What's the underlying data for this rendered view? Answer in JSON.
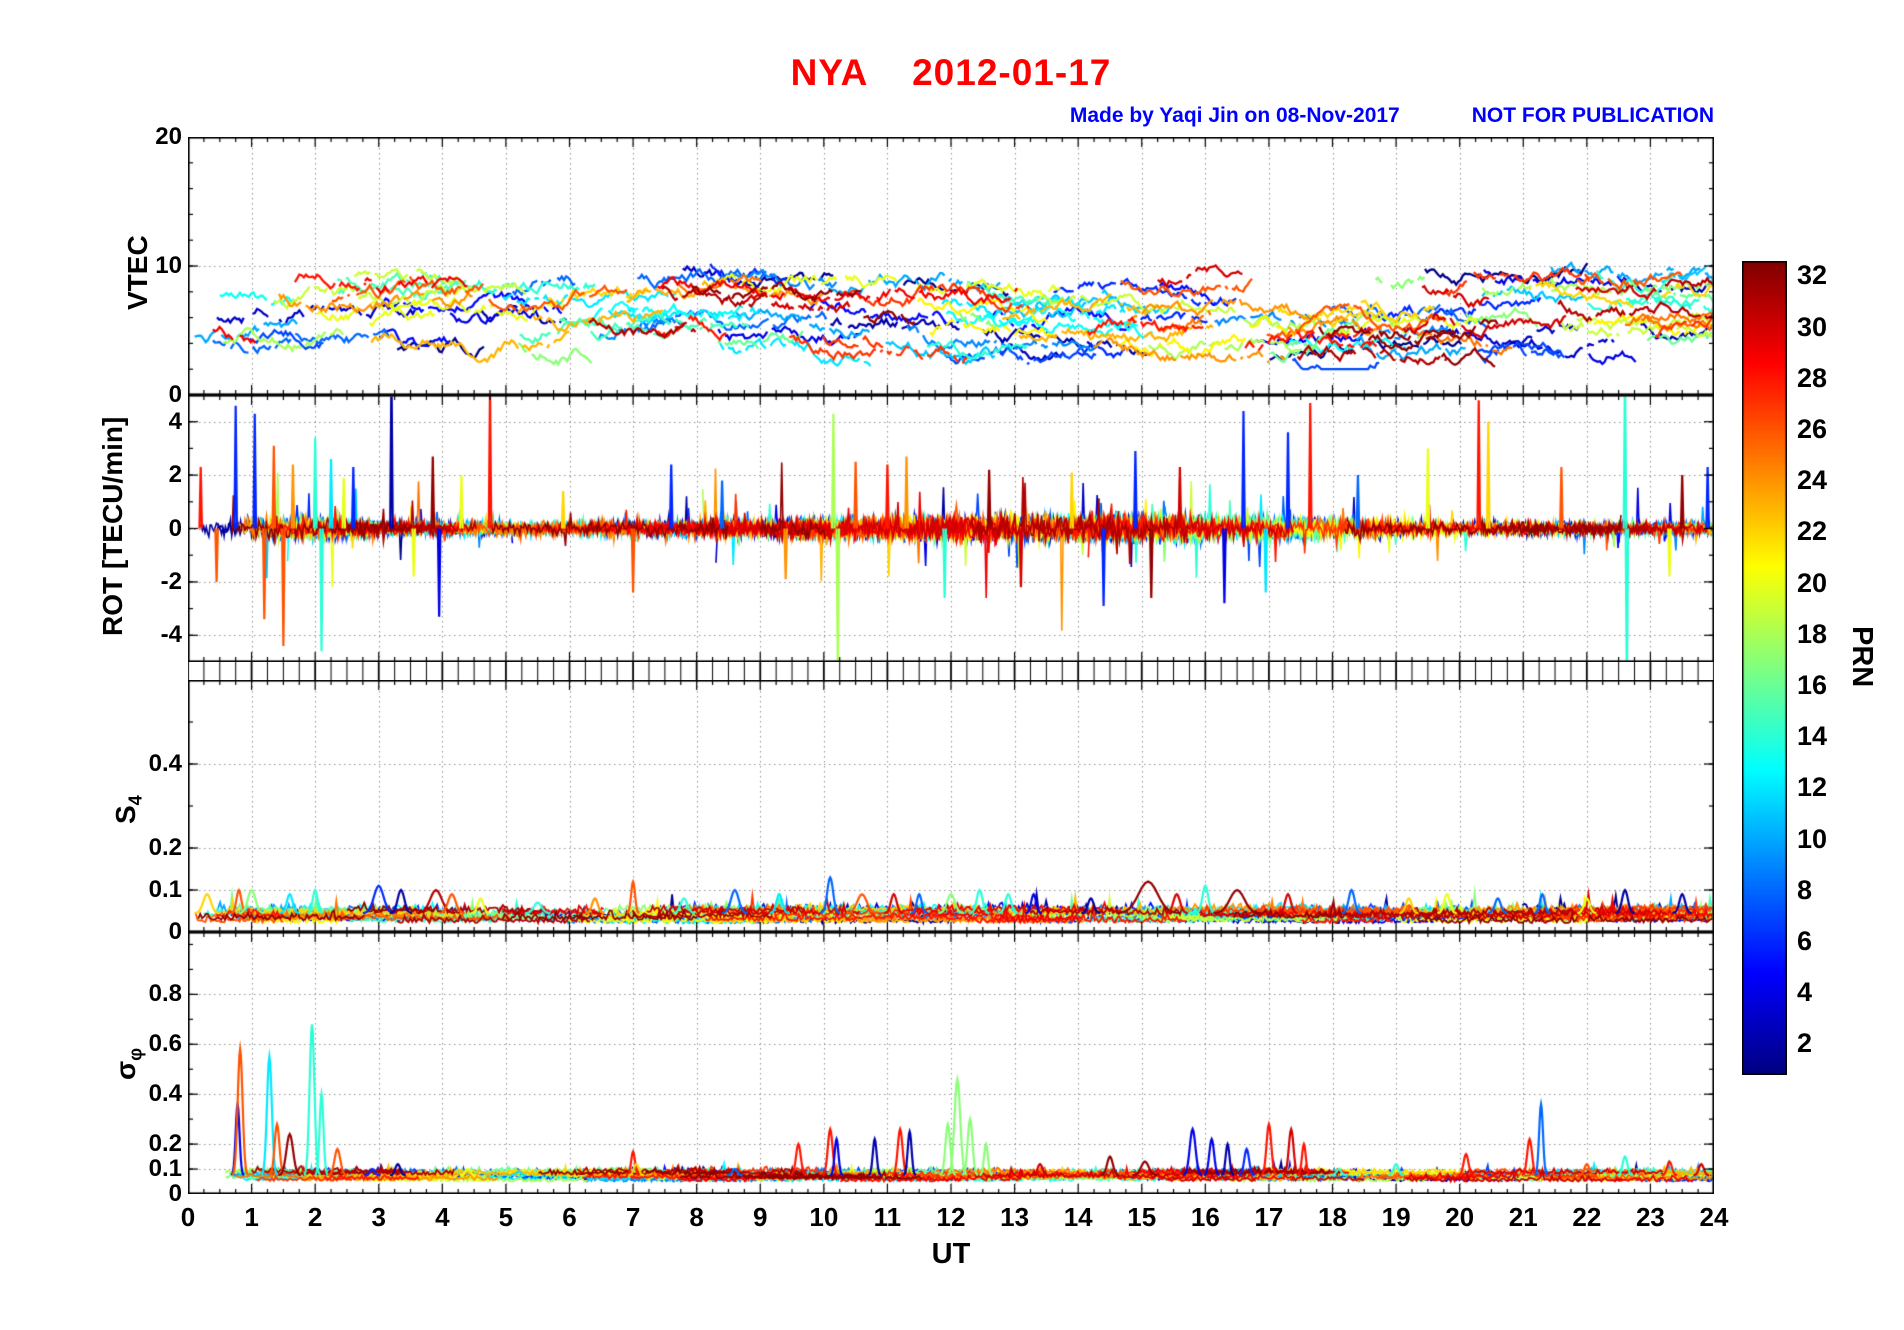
{
  "title": {
    "text": "NYA    2012-01-17"
  },
  "credit": {
    "made_by": "Made by Yaqi Jin on 08-Nov-2017",
    "notice": "NOT FOR PUBLICATION"
  },
  "colors": {
    "title": "#ff0000",
    "credit": "#0000ff",
    "axis": "#000000",
    "grid": "#909090",
    "background": "#ffffff"
  },
  "x_axis": {
    "label": "UT",
    "min": 0,
    "max": 24,
    "major_tick_step": 1,
    "minor_tick_step": 0.25,
    "tick_labels": [
      "0",
      "1",
      "2",
      "3",
      "4",
      "5",
      "6",
      "7",
      "8",
      "9",
      "10",
      "11",
      "12",
      "13",
      "14",
      "15",
      "16",
      "17",
      "18",
      "19",
      "20",
      "21",
      "22",
      "23",
      "24"
    ]
  },
  "colorbar": {
    "label": "PRN",
    "colormap": "jet",
    "domain": [
      0.8,
      32.6
    ],
    "tick_values": [
      2,
      4,
      6,
      8,
      10,
      12,
      14,
      16,
      18,
      20,
      22,
      24,
      26,
      28,
      30,
      32
    ]
  },
  "chart_data": {
    "type": "line",
    "title": "NYA 2012-01-17",
    "station": "NYA",
    "date": "2012-01-17",
    "xlabel": "UT",
    "x_range_hours": [
      0,
      24
    ],
    "series": "One trace per GPS satellite PRN 1-32, colored by PRN using the jet colormap (dark blue = PRN 1-2, cyan ~ 12-14, green-yellow ~ 17-20, orange ~ 24-26, red ~ 28-30, dark red = 31-32)",
    "spike_format": [
      "t_hours",
      "prn",
      "value"
    ],
    "peak_format": [
      "t_hours",
      "prn",
      "peak_value",
      "half_width_hours"
    ],
    "panels": [
      {
        "id": "vtec",
        "ylabel_main": "VTEC",
        "ylabel_sub": "",
        "ylim": [
          0,
          20
        ],
        "yticks_labeled": [
          0,
          10,
          20
        ],
        "ytick_labels": [
          "0",
          "10",
          "20"
        ],
        "minor_ytick_step": 2,
        "summary": "Vertical TEC arcs for all PRNs over 24 h; broken dotted arcs mostly between 3 and 12 TECU, occasional excursions to ~13.",
        "gen": {
          "seed": 1000,
          "arcs_per_prn": 5,
          "arc_duration_h": [
            0.7,
            3.2
          ],
          "base_range": [
            3.0,
            9.5
          ],
          "clamp": [
            2,
            13
          ],
          "step_h": 0.035,
          "walk": 0.7,
          "pull": 0.08,
          "gap_prob": 0.06
        }
      },
      {
        "id": "rot",
        "ylabel_main": "ROT [TECU/min]",
        "ylabel_sub": "",
        "ylim": [
          -5,
          5
        ],
        "yticks_labeled": [
          -4,
          -2,
          0,
          2,
          4
        ],
        "ytick_labels": [
          "-4",
          "-2",
          "0",
          "2",
          "4"
        ],
        "minor_ytick_step": 1,
        "summary": "Rate of TEC change; dense noise band around 0 (+/-0.5), enhanced variance 10-18 UT and 0.7-2.3 UT, with isolated spikes to +/-5 (clipped).",
        "gen": {
          "seed": 2000,
          "arcs_per_prn": 6,
          "arc_duration_h": [
            0.8,
            3.6
          ],
          "step_h": 0.02,
          "noise_std": 0.16,
          "spike_prob": 0.012,
          "activity": [
            {
              "c": 13.5,
              "w": 4.5,
              "g": 1.2
            },
            {
              "c": 1.6,
              "w": 1.0,
              "g": 0.9
            }
          ]
        },
        "spikes": [
          [
            0.2,
            28,
            2.3
          ],
          [
            0.45,
            26,
            -2.0
          ],
          [
            0.75,
            6,
            4.6
          ],
          [
            1.05,
            6,
            4.3
          ],
          [
            1.2,
            26,
            -3.4
          ],
          [
            1.35,
            26,
            3.1
          ],
          [
            1.5,
            26,
            -4.4
          ],
          [
            1.65,
            24,
            2.4
          ],
          [
            2.0,
            14,
            3.4
          ],
          [
            2.1,
            14,
            -4.6
          ],
          [
            2.25,
            12,
            2.6
          ],
          [
            2.45,
            20,
            1.9
          ],
          [
            2.6,
            6,
            2.3
          ],
          [
            3.2,
            2,
            6.0
          ],
          [
            3.55,
            20,
            -1.8
          ],
          [
            3.85,
            32,
            2.7
          ],
          [
            3.95,
            4,
            -3.3
          ],
          [
            4.3,
            20,
            2.0
          ],
          [
            4.75,
            28,
            5.2
          ],
          [
            5.9,
            22,
            1.4
          ],
          [
            7.0,
            26,
            -2.4
          ],
          [
            7.6,
            6,
            2.4
          ],
          [
            8.4,
            8,
            1.8
          ],
          [
            9.4,
            24,
            -1.9
          ],
          [
            10.15,
            18,
            4.3
          ],
          [
            10.22,
            18,
            -5.4
          ],
          [
            10.5,
            26,
            2.5
          ],
          [
            11.0,
            28,
            2.4
          ],
          [
            11.3,
            24,
            2.7
          ],
          [
            11.9,
            14,
            -2.6
          ],
          [
            12.6,
            32,
            2.2
          ],
          [
            13.1,
            30,
            -2.2
          ],
          [
            13.9,
            22,
            2.1
          ],
          [
            14.4,
            6,
            -2.9
          ],
          [
            14.9,
            6,
            2.9
          ],
          [
            15.15,
            32,
            -2.6
          ],
          [
            15.6,
            30,
            2.3
          ],
          [
            16.3,
            4,
            -2.8
          ],
          [
            16.6,
            6,
            4.4
          ],
          [
            16.95,
            12,
            -2.4
          ],
          [
            17.3,
            6,
            3.6
          ],
          [
            17.65,
            28,
            4.7
          ],
          [
            18.4,
            8,
            2.0
          ],
          [
            19.5,
            20,
            3.0
          ],
          [
            20.3,
            28,
            4.8
          ],
          [
            20.45,
            22,
            4.0
          ],
          [
            21.6,
            26,
            2.3
          ],
          [
            22.6,
            14,
            6.0
          ],
          [
            22.63,
            14,
            -6.0
          ],
          [
            23.3,
            20,
            -1.8
          ],
          [
            23.5,
            32,
            2.0
          ],
          [
            23.9,
            6,
            2.3
          ]
        ]
      },
      {
        "id": "s4",
        "ylabel_main": "S",
        "ylabel_sub": "4",
        "ylim": [
          0,
          0.6
        ],
        "yticks_labeled": [
          0,
          0.1,
          0.2,
          0.4
        ],
        "ytick_labels": [
          "0",
          "0.1",
          "0.2",
          "0.4"
        ],
        "minor_ytick_step": 0.1,
        "summary": "Amplitude scintillation index; flat multicolored band near 0.02-0.07 with small bumps to ~0.1-0.13 (e.g. 7.0 UT orange, 10.1 UT blue, 15.1 UT dark red).",
        "gen": {
          "seed": 3000,
          "arcs_per_prn": 6,
          "arc_duration_h": [
            1.0,
            3.5
          ],
          "step_h": 0.03,
          "base_range": [
            0.02,
            0.05
          ],
          "noise": 0.012,
          "peak_base": 0.045
        },
        "peaks": [
          [
            0.3,
            22,
            0.09,
            0.08
          ],
          [
            0.8,
            26,
            0.1,
            0.05
          ],
          [
            1.0,
            17,
            0.1,
            0.08
          ],
          [
            1.6,
            12,
            0.09,
            0.06
          ],
          [
            2.0,
            14,
            0.1,
            0.05
          ],
          [
            3.0,
            6,
            0.11,
            0.1
          ],
          [
            3.35,
            2,
            0.1,
            0.07
          ],
          [
            3.9,
            31,
            0.1,
            0.12
          ],
          [
            4.15,
            26,
            0.09,
            0.08
          ],
          [
            4.6,
            20,
            0.08,
            0.06
          ],
          [
            5.5,
            14,
            0.07,
            0.08
          ],
          [
            6.4,
            24,
            0.08,
            0.06
          ],
          [
            7.0,
            26,
            0.12,
            0.04
          ],
          [
            7.8,
            14,
            0.08,
            0.07
          ],
          [
            8.6,
            8,
            0.1,
            0.08
          ],
          [
            9.3,
            12,
            0.09,
            0.06
          ],
          [
            10.1,
            8,
            0.13,
            0.06
          ],
          [
            10.6,
            26,
            0.09,
            0.1
          ],
          [
            11.1,
            30,
            0.09,
            0.06
          ],
          [
            11.5,
            8,
            0.09,
            0.05
          ],
          [
            12.0,
            17,
            0.09,
            0.08
          ],
          [
            12.45,
            14,
            0.1,
            0.06
          ],
          [
            12.9,
            14,
            0.09,
            0.06
          ],
          [
            13.3,
            4,
            0.09,
            0.05
          ],
          [
            14.2,
            2,
            0.08,
            0.06
          ],
          [
            15.1,
            32,
            0.12,
            0.2
          ],
          [
            15.55,
            30,
            0.09,
            0.07
          ],
          [
            16.0,
            14,
            0.11,
            0.06
          ],
          [
            16.5,
            32,
            0.1,
            0.15
          ],
          [
            17.3,
            30,
            0.09,
            0.06
          ],
          [
            18.3,
            8,
            0.1,
            0.06
          ],
          [
            19.2,
            22,
            0.08,
            0.06
          ],
          [
            19.8,
            20,
            0.09,
            0.06
          ],
          [
            20.6,
            8,
            0.08,
            0.06
          ],
          [
            21.3,
            8,
            0.09,
            0.05
          ],
          [
            22.0,
            20,
            0.08,
            0.06
          ],
          [
            22.6,
            2,
            0.1,
            0.06
          ],
          [
            23.5,
            2,
            0.09,
            0.06
          ]
        ]
      },
      {
        "id": "sigma_phi",
        "ylabel_main": "σ",
        "ylabel_sub": "φ",
        "ylim": [
          0,
          1.05
        ],
        "yticks_labeled": [
          0,
          0.1,
          0.2,
          0.4,
          0.6,
          0.8
        ],
        "ytick_labels": [
          "0",
          "0.1",
          "0.2",
          "0.4",
          "0.6",
          "0.8"
        ],
        "minor_ytick_step": 0.1,
        "summary": "Phase scintillation index; baseline ~0.05-0.1 with strong peaks: 0.58 (orange, 0.8 UT), 0.55 (cyan, 1.3 UT), 0.68 (turquoise, 2.0 UT), 0.46 (green, 12.1 UT), 0.36 (blue, 21.3 UT), plus red/blue clusters 9.5-17.5 UT (0.2-0.28).",
        "gen": {
          "seed": 4000,
          "arcs_per_prn": 6,
          "arc_duration_h": [
            1.0,
            3.5
          ],
          "step_h": 0.03,
          "base_range": [
            0.05,
            0.085
          ],
          "noise": 0.015,
          "peak_base": 0.075
        },
        "peaks": [
          [
            0.78,
            4,
            0.36,
            0.04
          ],
          [
            0.82,
            26,
            0.58,
            0.05
          ],
          [
            1.28,
            12,
            0.55,
            0.05
          ],
          [
            1.4,
            26,
            0.28,
            0.05
          ],
          [
            1.6,
            32,
            0.24,
            0.07
          ],
          [
            1.95,
            14,
            0.68,
            0.05
          ],
          [
            2.1,
            14,
            0.4,
            0.04
          ],
          [
            2.35,
            26,
            0.18,
            0.06
          ],
          [
            2.9,
            6,
            0.1,
            0.05
          ],
          [
            3.3,
            2,
            0.12,
            0.05
          ],
          [
            4.4,
            20,
            0.1,
            0.05
          ],
          [
            5.2,
            12,
            0.09,
            0.05
          ],
          [
            7.0,
            28,
            0.17,
            0.04
          ],
          [
            7.05,
            22,
            0.12,
            0.05
          ],
          [
            8.6,
            8,
            0.1,
            0.05
          ],
          [
            9.6,
            28,
            0.2,
            0.05
          ],
          [
            10.1,
            28,
            0.26,
            0.05
          ],
          [
            10.2,
            4,
            0.22,
            0.04
          ],
          [
            10.8,
            2,
            0.22,
            0.04
          ],
          [
            11.2,
            28,
            0.26,
            0.05
          ],
          [
            11.35,
            2,
            0.25,
            0.04
          ],
          [
            11.95,
            17,
            0.28,
            0.05
          ],
          [
            12.1,
            17,
            0.46,
            0.06
          ],
          [
            12.3,
            17,
            0.3,
            0.05
          ],
          [
            12.55,
            17,
            0.2,
            0.04
          ],
          [
            13.4,
            30,
            0.12,
            0.05
          ],
          [
            14.5,
            32,
            0.15,
            0.06
          ],
          [
            15.05,
            32,
            0.13,
            0.08
          ],
          [
            15.8,
            4,
            0.26,
            0.06
          ],
          [
            16.1,
            4,
            0.22,
            0.05
          ],
          [
            16.35,
            2,
            0.2,
            0.04
          ],
          [
            16.65,
            6,
            0.18,
            0.05
          ],
          [
            17.0,
            28,
            0.28,
            0.05
          ],
          [
            17.35,
            30,
            0.26,
            0.05
          ],
          [
            17.55,
            28,
            0.2,
            0.04
          ],
          [
            18.1,
            14,
            0.1,
            0.05
          ],
          [
            19.0,
            14,
            0.12,
            0.05
          ],
          [
            20.1,
            28,
            0.16,
            0.05
          ],
          [
            21.1,
            28,
            0.22,
            0.05
          ],
          [
            21.28,
            8,
            0.36,
            0.04
          ],
          [
            22.0,
            26,
            0.12,
            0.05
          ],
          [
            22.6,
            14,
            0.15,
            0.05
          ],
          [
            23.3,
            28,
            0.13,
            0.05
          ],
          [
            23.8,
            30,
            0.12,
            0.05
          ]
        ]
      }
    ]
  }
}
